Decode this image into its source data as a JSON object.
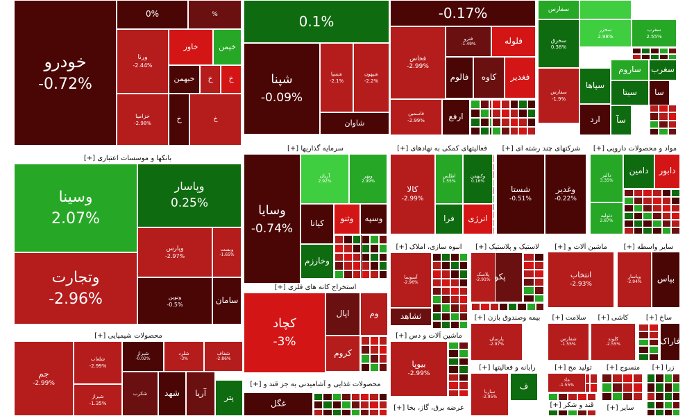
{
  "chart_data": {
    "type": "treemap",
    "title": "",
    "palette": {
      "g3": "#0f6b0f",
      "g2": "#26a826",
      "g1": "#3fce3f",
      "r1": "#b51c1c",
      "r2": "#d41515",
      "r3": "#6b1010",
      "r4": "#4a0505",
      "rd": "#5a0808"
    },
    "sectors": [
      {
        "name": "بانکها و موسسات اعتباری",
        "toggle": "[+]"
      },
      {
        "name": "سرمایه گذاریها",
        "toggle": "[+]"
      },
      {
        "name": "فعالیتهای کمکی به نهادهای",
        "toggle": "[+]"
      },
      {
        "name": "شرکتهای چند رشته ای",
        "toggle": "[+]"
      },
      {
        "name": "مواد و محصولات دارویی",
        "toggle": "[+]"
      },
      {
        "name": "محصولات شیمیایی",
        "toggle": "[+]"
      },
      {
        "name": "استخراج کانه های فلزی",
        "toggle": "[+]"
      },
      {
        "name": "انبوه سازی، املاک",
        "toggle": "[+]"
      },
      {
        "name": "لاستیک و پلاستیک",
        "toggle": "[+]"
      },
      {
        "name": "ماشین آلات و",
        "toggle": "[+]"
      },
      {
        "name": "سایر واسطه",
        "toggle": "[+]"
      },
      {
        "name": "ماشین آلات و دس",
        "toggle": "[+]"
      },
      {
        "name": "بیمه وصندوق بازن",
        "toggle": "[+]"
      },
      {
        "name": "سلامت",
        "toggle": "[+]"
      },
      {
        "name": "کاشی",
        "toggle": "[+]"
      },
      {
        "name": "ساخ",
        "toggle": "[+]"
      },
      {
        "name": "رایانه و فعالیتها",
        "toggle": "[+]"
      },
      {
        "name": "تولید مح",
        "toggle": "[+]"
      },
      {
        "name": "منسوج",
        "toggle": "[+]"
      },
      {
        "name": "زرا",
        "toggle": "[+]"
      },
      {
        "name": "محصولات غذایی و آشامیدنی به جز قند و",
        "toggle": "[+]"
      },
      {
        "name": "قند و شکر",
        "toggle": "[+]"
      },
      {
        "name": "سایر",
        "toggle": "[+]"
      },
      {
        "name": "عرضه برق، گاز، بخا",
        "toggle": "[+]"
      }
    ],
    "tiles": [
      {
        "name": "خودرو",
        "change": "-0.72%",
        "color": "r4"
      },
      {
        "name": "",
        "change": "0%",
        "color": "r4"
      },
      {
        "name": "",
        "change": "%",
        "color": "r3"
      },
      {
        "name": "ورنا",
        "change": "-2.44%",
        "color": "r1"
      },
      {
        "name": "خاور",
        "change": "",
        "color": "r2"
      },
      {
        "name": "خیمن",
        "change": "",
        "color": "g2"
      },
      {
        "name": "خبهمن",
        "change": "",
        "color": "r4"
      },
      {
        "name": "خ",
        "change": "",
        "color": "r1"
      },
      {
        "name": "خ",
        "change": "",
        "color": "r2"
      },
      {
        "name": "خزامیا",
        "change": "-2.98%",
        "color": "r1"
      },
      {
        "name": "خ",
        "change": "",
        "color": "r4"
      },
      {
        "name": "خ",
        "change": "",
        "color": "r1"
      },
      {
        "name": "",
        "change": "0.1%",
        "color": "g3"
      },
      {
        "name": "شپنا",
        "change": "-0.09%",
        "color": "r4"
      },
      {
        "name": "شسپا",
        "change": "-2.1%",
        "color": "r1"
      },
      {
        "name": "شپهون",
        "change": "-2.2%",
        "color": "r1"
      },
      {
        "name": "شاوان",
        "change": "",
        "color": "r4"
      },
      {
        "name": "",
        "change": "-0.17%",
        "color": "r4"
      },
      {
        "name": "فخاس",
        "change": "-2.99%",
        "color": "r1"
      },
      {
        "name": "فنرو",
        "change": "-1.49%",
        "color": "r3"
      },
      {
        "name": "فلوله",
        "change": "",
        "color": "r2"
      },
      {
        "name": "فالوم",
        "change": "",
        "color": "r4"
      },
      {
        "name": "کاوه",
        "change": "",
        "color": "r3"
      },
      {
        "name": "فغدیر",
        "change": "",
        "color": "r2"
      },
      {
        "name": "فاسمین",
        "change": "-2.99%",
        "color": "r1"
      },
      {
        "name": "ارفع",
        "change": "",
        "color": "r4"
      },
      {
        "name": "سفارس",
        "change": "",
        "color": "g2"
      },
      {
        "name": "",
        "change": "",
        "color": "g1"
      },
      {
        "name": "سخزر",
        "change": "2.98%",
        "color": "g1"
      },
      {
        "name": "سغرب",
        "change": "2.55%",
        "color": "g2"
      },
      {
        "name": "سخرق",
        "change": "0.38%",
        "color": "g3"
      },
      {
        "name": "ساروم",
        "change": "",
        "color": "g2"
      },
      {
        "name": "سغرب",
        "change": "",
        "color": "g3"
      },
      {
        "name": "سپاها",
        "change": "",
        "color": "g3"
      },
      {
        "name": "سیتا",
        "change": "",
        "color": "g3"
      },
      {
        "name": "سا",
        "change": "",
        "color": "r4"
      },
      {
        "name": "سفارس",
        "change": "-1.9%",
        "color": "r1"
      },
      {
        "name": "ارد",
        "change": "",
        "color": "r4"
      },
      {
        "name": "سآ",
        "change": "",
        "color": "g3"
      },
      {
        "name": "وسینا",
        "change": "2.07%",
        "color": "g2"
      },
      {
        "name": "وپاسار",
        "change": "0.25%",
        "color": "g3"
      },
      {
        "name": "وپارس",
        "change": "-2.97%",
        "color": "r1"
      },
      {
        "name": "وبست",
        "change": "-1.65%",
        "color": "r1"
      },
      {
        "name": "وتجارت",
        "change": "-2.96%",
        "color": "r1"
      },
      {
        "name": "ونوین",
        "change": "-0.5%",
        "color": "r4"
      },
      {
        "name": "سامان",
        "change": "",
        "color": "r4"
      },
      {
        "name": "وسایا",
        "change": "-0.74%",
        "color": "r4"
      },
      {
        "name": "آریان",
        "change": "2.92%",
        "color": "g1"
      },
      {
        "name": "وبهر",
        "change": "2.99%",
        "color": "g2"
      },
      {
        "name": "کیانا",
        "change": "",
        "color": "r4"
      },
      {
        "name": "وثنو",
        "change": "",
        "color": "r2"
      },
      {
        "name": "وسپه",
        "change": "",
        "color": "r4"
      },
      {
        "name": "وخارزم",
        "change": "",
        "color": "g3"
      },
      {
        "name": "کالا",
        "change": "-2.99%",
        "color": "r1"
      },
      {
        "name": "اطلس",
        "change": "1.55%",
        "color": "g2"
      },
      {
        "name": "وکبهمن",
        "change": "0.16%",
        "color": "g3"
      },
      {
        "name": "فرا",
        "change": "",
        "color": "g3"
      },
      {
        "name": "انرژی",
        "change": "",
        "color": "r2"
      },
      {
        "name": "شستا",
        "change": "-0.51%",
        "color": "r4"
      },
      {
        "name": "وغدیر",
        "change": "-0.22%",
        "color": "r4"
      },
      {
        "name": "دالبر",
        "change": "3.35%",
        "color": "g2"
      },
      {
        "name": "دامین",
        "change": "",
        "color": "g3"
      },
      {
        "name": "دابور",
        "change": "",
        "color": "r2"
      },
      {
        "name": "دتولید",
        "change": "2.87%",
        "color": "g2"
      },
      {
        "name": "جم",
        "change": "-2.99%",
        "color": "r1"
      },
      {
        "name": "شلعاب",
        "change": "-2.99%",
        "color": "r1"
      },
      {
        "name": "شیراز",
        "change": "-0.02%",
        "color": "r4"
      },
      {
        "name": "شلرد",
        "change": "-3%",
        "color": "r1"
      },
      {
        "name": "شفاف",
        "change": "-2.86%",
        "color": "r1"
      },
      {
        "name": "شیراز",
        "change": "-1.35%",
        "color": "r1"
      },
      {
        "name": "شکرب",
        "change": "",
        "color": "r3"
      },
      {
        "name": "شهد",
        "change": "",
        "color": "r4"
      },
      {
        "name": "آریا",
        "change": "",
        "color": "r3"
      },
      {
        "name": "پتر",
        "change": "",
        "color": "g3"
      },
      {
        "name": "کچاد",
        "change": "-3%",
        "color": "r2"
      },
      {
        "name": "اپال",
        "change": "",
        "color": "r3"
      },
      {
        "name": "وم",
        "change": "",
        "color": "r1"
      },
      {
        "name": "کروم",
        "change": "",
        "color": "r1"
      },
      {
        "name": "ثاخت",
        "change": "",
        "color": "g3"
      },
      {
        "name": "آسوسا",
        "change": "-2.96%",
        "color": "r1"
      },
      {
        "name": "ثشاهد",
        "change": "",
        "color": "r3"
      },
      {
        "name": "پکویر",
        "change": "",
        "color": "r3"
      },
      {
        "name": "پلاسک",
        "change": "-2.91%",
        "color": "r1"
      },
      {
        "name": "انتخاب",
        "change": "-2.93%",
        "color": "r1"
      },
      {
        "name": "وپاسار",
        "change": "-2.94%",
        "color": "r1"
      },
      {
        "name": "بپاس",
        "change": "",
        "color": "r4"
      },
      {
        "name": "بیوپا",
        "change": "-2.99%",
        "color": "r1"
      },
      {
        "name": "پارسان",
        "change": "-2.97%",
        "color": "r1"
      },
      {
        "name": "شفارس",
        "change": "-1.55%",
        "color": "r1"
      },
      {
        "name": "کلوند",
        "change": "-2.55%",
        "color": "r1"
      },
      {
        "name": "فاراک",
        "change": "",
        "color": "r4"
      },
      {
        "name": "ف",
        "change": "",
        "color": "g3"
      },
      {
        "name": "ساربا",
        "change": "-2.95%",
        "color": "r1"
      },
      {
        "name": "ماد",
        "change": "-1.55%",
        "color": "r1"
      },
      {
        "name": "غگل",
        "change": "",
        "color": "r4"
      }
    ]
  }
}
